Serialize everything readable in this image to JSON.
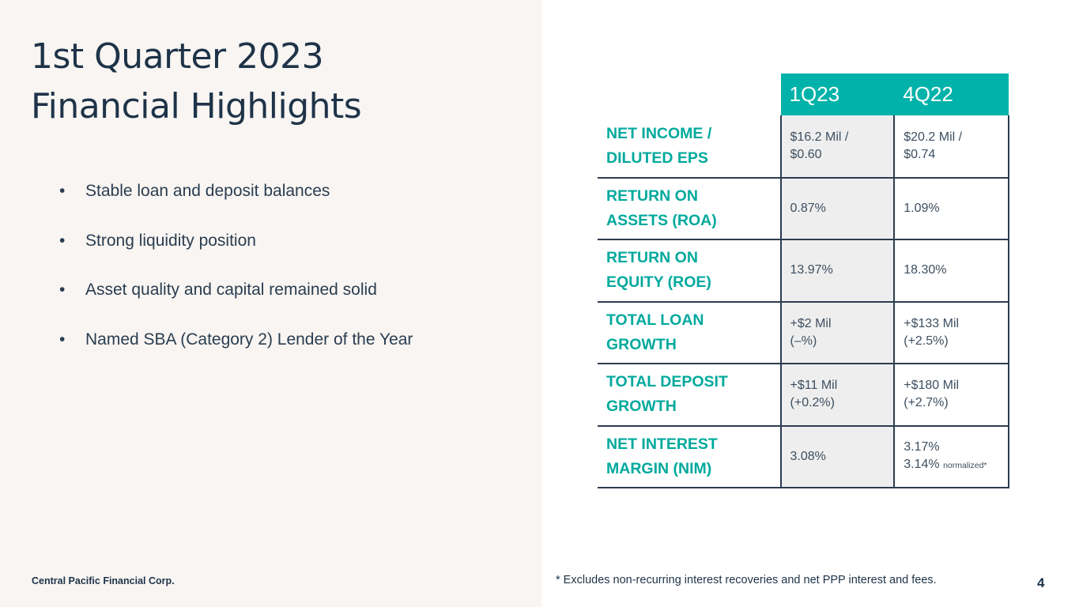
{
  "slide": {
    "title_line1": "1st Quarter 2023",
    "title_line2": "Financial Highlights",
    "bullet_glyph": "•",
    "bullets": [
      "Stable loan and deposit balances",
      "Strong liquidity position",
      "Asset quality and capital remained solid",
      "Named SBA (Category 2) Lender of the Year"
    ],
    "company": "Central Pacific Financial Corp.",
    "footnote": "* Excludes non-recurring interest recoveries and net PPP interest and fees.",
    "page_number": "4"
  },
  "table": {
    "headers": [
      "1Q23",
      "4Q22"
    ],
    "rows": [
      {
        "label_1": "NET INCOME /",
        "label_2": "DILUTED EPS",
        "q1_1": "$16.2 Mil /",
        "q1_2": "$0.60",
        "q4_1": "$20.2 Mil /",
        "q4_2": "$0.74"
      },
      {
        "label_1": "RETURN ON",
        "label_2": "ASSETS (ROA)",
        "q1_1": "0.87%",
        "q1_2": "",
        "q4_1": "1.09%",
        "q4_2": ""
      },
      {
        "label_1": "RETURN ON",
        "label_2": "EQUITY (ROE)",
        "q1_1": "13.97%",
        "q1_2": "",
        "q4_1": "18.30%",
        "q4_2": ""
      },
      {
        "label_1": "TOTAL LOAN",
        "label_2": "GROWTH",
        "q1_1": "+$2 Mil",
        "q1_2": "(–%)",
        "q4_1": "+$133 Mil",
        "q4_2": "(+2.5%)"
      },
      {
        "label_1": "TOTAL DEPOSIT",
        "label_2": "GROWTH",
        "q1_1": "+$11 Mil",
        "q1_2": "(+0.2%)",
        "q4_1": "+$180 Mil",
        "q4_2": "(+2.7%)"
      },
      {
        "label_1": "NET INTEREST",
        "label_2": "MARGIN (NIM)",
        "q1_1": "3.08%",
        "q1_2": "",
        "q4_1": "3.17%",
        "q4_2": "3.14%",
        "q4_note": "normalized*"
      }
    ]
  },
  "colors": {
    "teal": "#00b2a9",
    "navy": "#1e3348",
    "panel": "#f8f5f2"
  }
}
